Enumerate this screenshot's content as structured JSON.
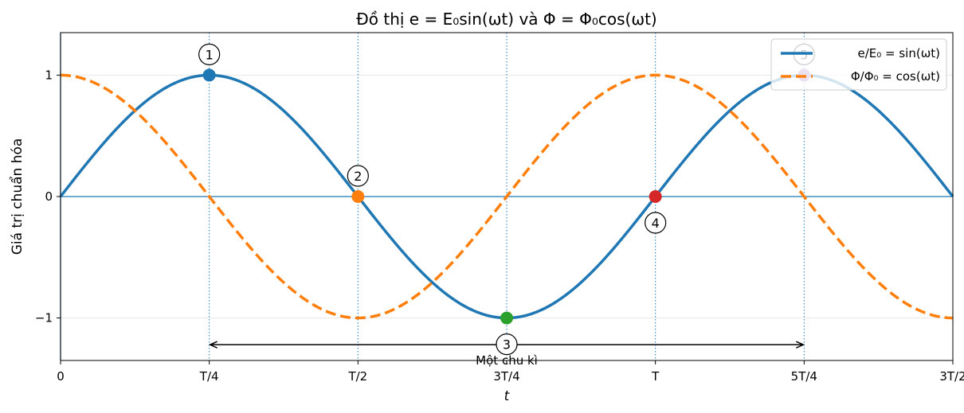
{
  "chart_data": {
    "type": "line",
    "title": "Đồ thị e = E₀sin(ωt) và Φ = Φ₀cos(ωt)",
    "xlabel": "t",
    "ylabel": "Giá trị chuẩn hóa",
    "xlim": [
      0,
      1.5
    ],
    "ylim": [
      -1.35,
      1.35
    ],
    "x_unit": "T",
    "x_ticks": [
      {
        "value": 0,
        "label": "0"
      },
      {
        "value": 0.25,
        "label": "T/4"
      },
      {
        "value": 0.5,
        "label": "T/2"
      },
      {
        "value": 0.75,
        "label": "3T/4"
      },
      {
        "value": 1.0,
        "label": "T"
      },
      {
        "value": 1.25,
        "label": "5T/4"
      },
      {
        "value": 1.5,
        "label": "3T/2"
      }
    ],
    "y_ticks": [
      {
        "value": 1,
        "label": "1"
      },
      {
        "value": 0,
        "label": "0"
      },
      {
        "value": -1,
        "label": "−1"
      }
    ],
    "grid": "horizontal light grid; dotted vertical lines at T/4, T/2, 3T/4, T, 5T/4",
    "legend_position": "top-right",
    "series": [
      {
        "name": "e/E₀ = sin(ωt)",
        "function": "sin",
        "color": "#1f77b4",
        "style": "solid"
      },
      {
        "name": "Φ/Φ₀ = cos(ωt)",
        "function": "cos",
        "color": "#ff7f0e",
        "style": "dashed"
      }
    ],
    "markers": [
      {
        "label": "1",
        "x": 0.25,
        "y": 1,
        "color": "#1f77b4",
        "label_side": "above"
      },
      {
        "label": "2",
        "x": 0.5,
        "y": 0,
        "color": "#ff7f0e",
        "label_side": "above"
      },
      {
        "label": "3",
        "x": 0.75,
        "y": -1,
        "color": "#2ca02c",
        "label_side": "below"
      },
      {
        "label": "4",
        "x": 1.0,
        "y": 0,
        "color": "#d62728",
        "label_side": "below"
      },
      {
        "label": "5",
        "x": 1.25,
        "y": 1,
        "color": "#9467bd",
        "label_side": "above"
      }
    ],
    "period_annotation": {
      "text": "Một chu kì",
      "x_start": 0.25,
      "x_end": 1.25,
      "y": -1.22
    }
  }
}
